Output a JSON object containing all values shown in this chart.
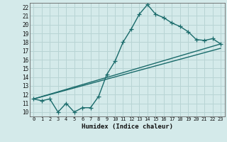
{
  "title": "",
  "xlabel": "Humidex (Indice chaleur)",
  "ylabel": "",
  "bg_color": "#d4eaea",
  "grid_color": "#b8d4d4",
  "line_color": "#1a6b6b",
  "xlim": [
    -0.5,
    23.5
  ],
  "ylim": [
    9.5,
    22.5
  ],
  "xticks": [
    0,
    1,
    2,
    3,
    4,
    5,
    6,
    7,
    8,
    9,
    10,
    11,
    12,
    13,
    14,
    15,
    16,
    17,
    18,
    19,
    20,
    21,
    22,
    23
  ],
  "yticks": [
    10,
    11,
    12,
    13,
    14,
    15,
    16,
    17,
    18,
    19,
    20,
    21,
    22
  ],
  "series1_x": [
    0,
    1,
    2,
    3,
    4,
    5,
    6,
    7,
    8,
    9,
    10,
    11,
    12,
    13,
    14,
    15,
    16,
    17,
    18,
    19,
    20,
    21,
    22,
    23
  ],
  "series1_y": [
    11.5,
    11.3,
    11.5,
    10.0,
    11.0,
    10.0,
    10.5,
    10.5,
    11.8,
    14.3,
    15.8,
    18.0,
    19.5,
    21.2,
    22.3,
    21.2,
    20.8,
    20.2,
    19.8,
    19.2,
    18.3,
    18.2,
    18.4,
    17.8
  ],
  "series2_x": [
    0,
    23
  ],
  "series2_y": [
    11.5,
    17.8
  ],
  "series3_x": [
    0,
    23
  ],
  "series3_y": [
    11.5,
    17.3
  ],
  "marker_size": 4.0,
  "linewidth": 1.0
}
